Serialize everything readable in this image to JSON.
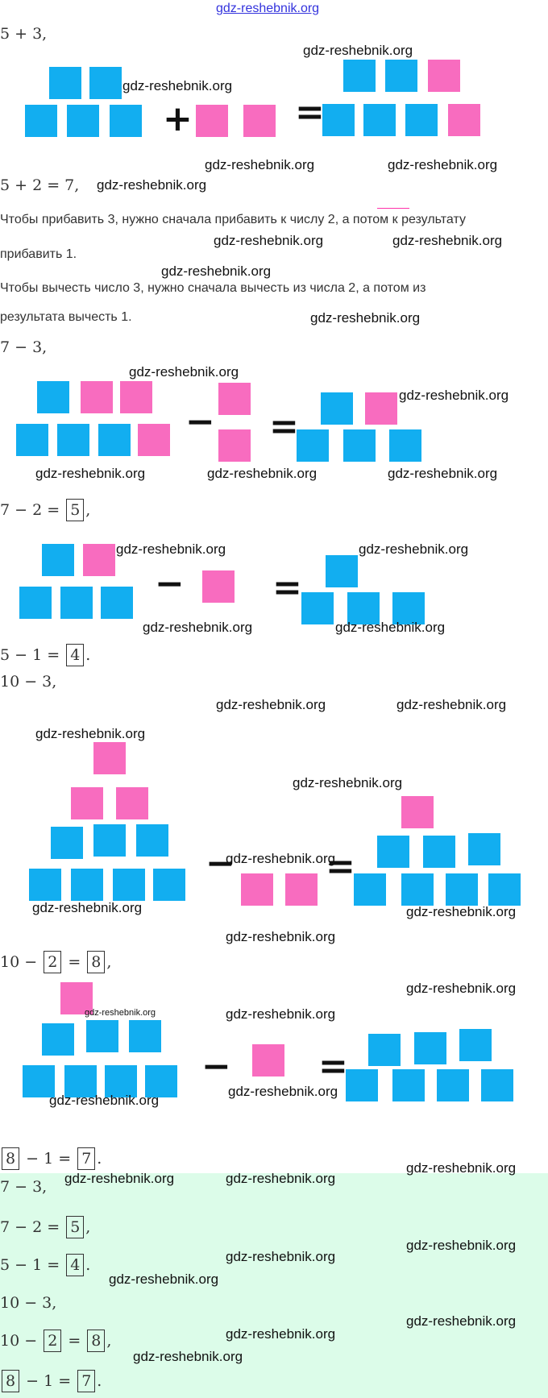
{
  "watermark": "gdz-reshebnik.org",
  "header_link": "gdz-reshebnik.org",
  "colors": {
    "blue": "#12aef0",
    "pink": "#f86cbf",
    "answer_bg": "#dcfce9"
  },
  "paragraphs": [
    "Чтобы прибавить 3, нужно сначала прибавить к числу 2, а потом к результату",
    "прибавить 1.",
    "Чтобы вычесть число 3, нужно сначала вычесть из числа 2, а потом из",
    "результата вычесть 1."
  ],
  "equations": [
    [
      {
        "t": "5 + 3,"
      }
    ],
    [
      {
        "t": "5 + 2 = 7,"
      }
    ],
    [
      {
        "t": "7 − 3,"
      }
    ],
    [
      {
        "t": "7 − 2 = "
      },
      {
        "box": "5"
      },
      {
        "t": ","
      }
    ],
    [
      {
        "t": "5 − 1 = "
      },
      {
        "box": "4"
      },
      {
        "t": "."
      }
    ],
    [
      {
        "t": "10 − 3,"
      }
    ],
    [
      {
        "t": "10 − "
      },
      {
        "box": "2"
      },
      {
        "t": " = "
      },
      {
        "box": "8"
      },
      {
        "t": ","
      }
    ],
    [
      {
        "box": "8"
      },
      {
        "t": " − 1 = "
      },
      {
        "box": "7"
      },
      {
        "t": "."
      }
    ]
  ],
  "answers": [
    [
      {
        "t": "7 − 3,"
      }
    ],
    [
      {
        "t": "7 − 2 = "
      },
      {
        "box": "5"
      },
      {
        "t": ","
      }
    ],
    [
      {
        "t": "5 − 1 = "
      },
      {
        "box": "4"
      },
      {
        "t": "."
      }
    ],
    [
      {
        "t": "10 − 3,"
      }
    ],
    [
      {
        "t": "10 − "
      },
      {
        "box": "2"
      },
      {
        "t": " = "
      },
      {
        "box": "8"
      },
      {
        "t": ","
      }
    ],
    [
      {
        "box": "8"
      },
      {
        "t": " − 1 = "
      },
      {
        "box": "7"
      },
      {
        "t": "."
      }
    ]
  ],
  "operators": {
    "plus": "+",
    "minus": "−",
    "equals": "="
  }
}
